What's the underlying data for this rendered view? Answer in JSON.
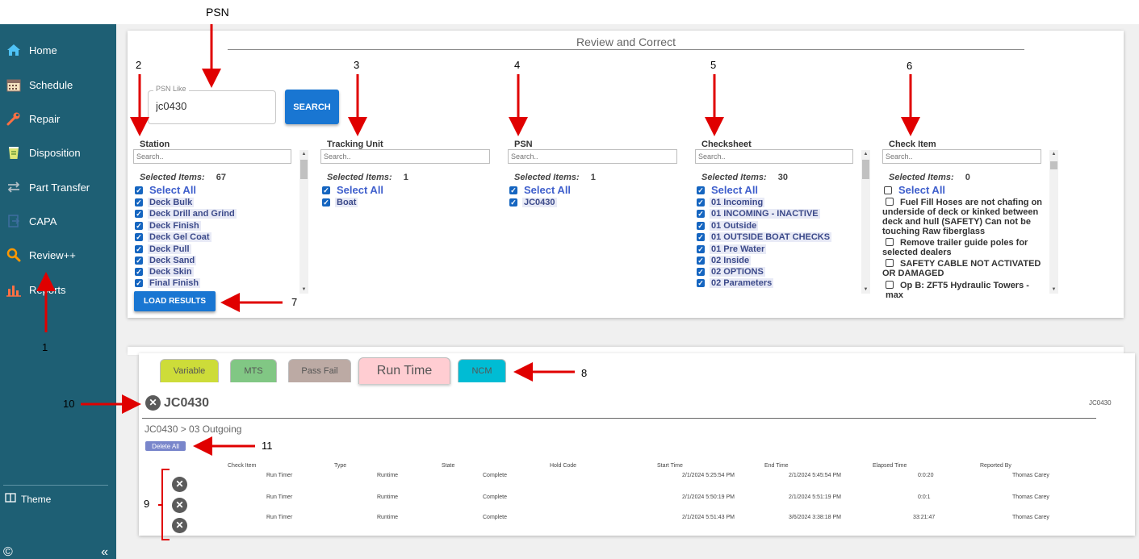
{
  "sidebar": {
    "items": [
      {
        "label": "Home",
        "icon": "home-icon"
      },
      {
        "label": "Schedule",
        "icon": "calendar-icon"
      },
      {
        "label": "Repair",
        "icon": "wrench-icon"
      },
      {
        "label": "Disposition",
        "icon": "bin-icon"
      },
      {
        "label": "Part Transfer",
        "icon": "transfer-icon"
      },
      {
        "label": "CAPA",
        "icon": "capa-icon"
      },
      {
        "label": "Review++",
        "icon": "search-icon"
      },
      {
        "label": "Reports",
        "icon": "bar-chart-icon"
      }
    ],
    "theme_label": "Theme",
    "copyright_symbol": "©",
    "collapse_symbol": "«"
  },
  "review": {
    "title": "Review and Correct",
    "psn_like_label": "PSN Like",
    "psn_like_value": "jc0430",
    "search_button": "SEARCH",
    "load_results_button": "LOAD RESULTS"
  },
  "filters": {
    "search_placeholder": "Search..",
    "selected_items_label": "Selected Items:",
    "select_all_label": "Select All",
    "station": {
      "title": "Station",
      "selected_count": "67",
      "items": [
        "Deck Bulk",
        "Deck Drill and Grind",
        "Deck Finish",
        "Deck Gel Coat",
        "Deck Pull",
        "Deck Sand",
        "Deck Skin",
        "Final Finish"
      ]
    },
    "tracking_unit": {
      "title": "Tracking Unit",
      "selected_count": "1",
      "items": [
        "Boat"
      ]
    },
    "psn": {
      "title": "PSN",
      "selected_count": "1",
      "items": [
        "JC0430"
      ]
    },
    "checksheet": {
      "title": "Checksheet",
      "selected_count": "30",
      "items": [
        "01 Incoming",
        "01 INCOMING - INACTIVE",
        "01 Outside",
        "01 OUTSIDE BOAT CHECKS",
        "01 Pre Water",
        "02 Inside",
        "02 OPTIONS",
        "02 Parameters"
      ]
    },
    "check_item": {
      "title": "Check Item",
      "selected_count": "0",
      "items": [
        [
          "Fuel Fill Hoses are not chafing on",
          "underside of deck or kinked between",
          "deck and hull (SAFETY) Can not be",
          "touching Raw fiberglass"
        ],
        [
          "Remove trailer guide poles for",
          "selected dealers"
        ],
        [
          "SAFETY CABLE NOT ACTIVATED",
          "OR DAMAGED"
        ],
        [
          "Op B: ZFT5 Hydraulic Towers - max"
        ]
      ]
    }
  },
  "tabs": [
    "Variable",
    "MTS",
    "Pass Fail",
    "Run Time",
    "NCM"
  ],
  "results": {
    "psn_heading": "JC0430",
    "psn_right": "JC0430",
    "breadcrumb": "JC0430 > 03 Outgoing",
    "delete_all": "Delete All",
    "columns": [
      "Check Item",
      "Type",
      "State",
      "Hold Code",
      "Start Time",
      "End Time",
      "Elapsed Time",
      "Reported By"
    ],
    "rows": [
      {
        "check_item": "Run Timer",
        "type": "Runtime",
        "state": "Complete",
        "hold_code": "",
        "start": "2/1/2024 5:25:54 PM",
        "end": "2/1/2024 5:45:54 PM",
        "elapsed": "0:0:20",
        "reported_by": "Thomas Carey"
      },
      {
        "check_item": "Run Timer",
        "type": "Runtime",
        "state": "Complete",
        "hold_code": "",
        "start": "2/1/2024 5:50:19 PM",
        "end": "2/1/2024 5:51:19 PM",
        "elapsed": "0:0:1",
        "reported_by": "Thomas Carey"
      },
      {
        "check_item": "Run Timer",
        "type": "Runtime",
        "state": "Complete",
        "hold_code": "",
        "start": "2/1/2024 5:51:43 PM",
        "end": "3/6/2024 3:38:18 PM",
        "elapsed": "33:21:47",
        "reported_by": "Thomas Carey"
      }
    ]
  },
  "annotations": {
    "psn": "PSN",
    "n1": "1",
    "n2": "2",
    "n3": "3",
    "n4": "4",
    "n5": "5",
    "n6": "6",
    "n7": "7",
    "n8": "8",
    "n9": "9",
    "n10": "10",
    "n11": "11"
  },
  "colors": {
    "sidebar": "#1e5f74",
    "primary_button": "#1976d2",
    "tab_variable": "#cddc39",
    "tab_mts": "#81c784",
    "tab_passfail": "#bcaaa4",
    "tab_runtime": "#ffcdd2",
    "tab_ncm": "#00bcd4",
    "annotation_arrow": "#e00000"
  }
}
